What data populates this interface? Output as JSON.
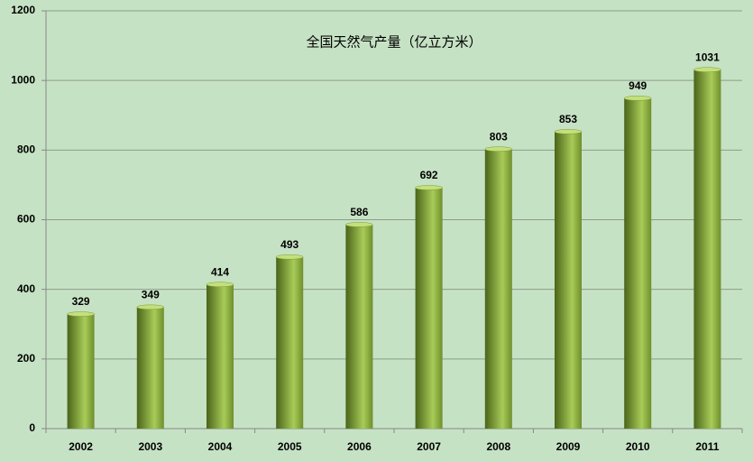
{
  "chart_data": {
    "type": "bar",
    "title": "全国天然气产量（亿立方米）",
    "categories": [
      "2002",
      "2003",
      "2004",
      "2005",
      "2006",
      "2007",
      "2008",
      "2009",
      "2010",
      "2011"
    ],
    "values": [
      329,
      349,
      414,
      493,
      586,
      692,
      803,
      853,
      949,
      1031
    ],
    "color": "#a8cc58",
    "ylim": [
      0,
      1200
    ],
    "yticks": [
      0,
      200,
      400,
      600,
      800,
      1000,
      1200
    ],
    "grid": true
  }
}
